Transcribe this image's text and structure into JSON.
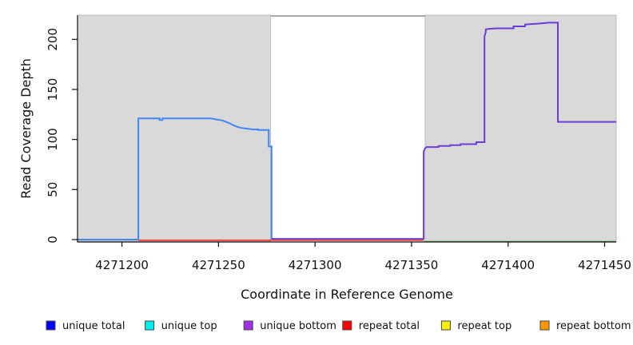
{
  "figure": {
    "background": "#ffffff",
    "panel_fill": "#d9d9d9",
    "panel_border": "#bdbdbd",
    "axis_color": "#111111"
  },
  "chart_data": {
    "type": "line",
    "title": "",
    "xlabel": "Coordinate in Reference Genome",
    "ylabel": "Read Coverage Depth",
    "xlim": [
      4271177,
      4271456
    ],
    "ylim": [
      0,
      224
    ],
    "x_ticks": [
      4271200,
      4271250,
      4271300,
      4271350,
      4271400,
      4271450
    ],
    "y_ticks": [
      0,
      50,
      100,
      150,
      200
    ],
    "grid": "off",
    "legend_position": "bottom",
    "shaded_regions": [
      {
        "x1": 4271177,
        "x2": 4271277,
        "fill": "#d9d9d9"
      },
      {
        "x1": 4271357,
        "x2": 4271456,
        "fill": "#d9d9d9"
      }
    ],
    "gap_top_border": {
      "x1": 4271277,
      "x2": 4271357,
      "color": "#8f8f8f"
    },
    "series": [
      {
        "name": "unique total",
        "color": "#4285f4",
        "width": 2,
        "points": [
          [
            4271177,
            0
          ],
          [
            4271208.5,
            0
          ],
          [
            4271208.5,
            121
          ],
          [
            4271219.5,
            121
          ],
          [
            4271219.5,
            119.5
          ],
          [
            4271221,
            119.5
          ],
          [
            4271221,
            121
          ],
          [
            4271246,
            121
          ],
          [
            4271249,
            120
          ],
          [
            4271252,
            119
          ],
          [
            4271254,
            117.5
          ],
          [
            4271256,
            116
          ],
          [
            4271258,
            114
          ],
          [
            4271260,
            112.5
          ],
          [
            4271262,
            111.5
          ],
          [
            4271264,
            111
          ],
          [
            4271266,
            110.5
          ],
          [
            4271268,
            110
          ],
          [
            4271270.6,
            110
          ],
          [
            4271270.6,
            109.5
          ],
          [
            4271276,
            109.5
          ],
          [
            4271276,
            93
          ],
          [
            4271277.5,
            93
          ],
          [
            4271277.5,
            0
          ],
          [
            4271278.5,
            0
          ]
        ]
      },
      {
        "name": "unique bottom",
        "color": "#6a3fd8",
        "width": 2,
        "points": [
          [
            4271277.5,
            0.7
          ],
          [
            4271356.3,
            0.7
          ],
          [
            4271356.3,
            88
          ],
          [
            4271357,
            91
          ],
          [
            4271357.8,
            92.5
          ],
          [
            4271364,
            92.5
          ],
          [
            4271364,
            93.5
          ],
          [
            4271370,
            93.5
          ],
          [
            4271370,
            94.3
          ],
          [
            4271375.4,
            94.3
          ],
          [
            4271375.4,
            95.3
          ],
          [
            4271383.5,
            95.3
          ],
          [
            4271383.5,
            97.3
          ],
          [
            4271387.8,
            97.3
          ],
          [
            4271387.8,
            203
          ],
          [
            4271388.4,
            207
          ],
          [
            4271388.4,
            210
          ],
          [
            4271390,
            210.5
          ],
          [
            4271394,
            211
          ],
          [
            4271402.8,
            211
          ],
          [
            4271402.8,
            213
          ],
          [
            4271408.8,
            213
          ],
          [
            4271408.8,
            214.8
          ],
          [
            4271412,
            215.3
          ],
          [
            4271416,
            215.8
          ],
          [
            4271419,
            216.3
          ],
          [
            4271421,
            216.7
          ],
          [
            4271425.8,
            216.7
          ],
          [
            4271425.8,
            117.6
          ],
          [
            4271456,
            117.6
          ]
        ]
      },
      {
        "name": "repeat total",
        "color": "#ee4444",
        "width": 1.8,
        "points": [
          [
            4271208.5,
            -0.6
          ],
          [
            4271356.3,
            -0.6
          ]
        ]
      },
      {
        "name": "baseline green",
        "color": "#55bb55",
        "width": 1.8,
        "points": [
          [
            4271356.3,
            -2
          ],
          [
            4271456,
            -2
          ]
        ]
      }
    ]
  },
  "legend": {
    "items": [
      {
        "label": "unique total",
        "color": "#0000ff"
      },
      {
        "label": "unique top",
        "color": "#00eeee"
      },
      {
        "label": "unique bottom",
        "color": "#9f30e8"
      },
      {
        "label": "repeat total",
        "color": "#ff0000"
      },
      {
        "label": "repeat top",
        "color": "#ffee00"
      },
      {
        "label": "repeat bottom",
        "color": "#ff9800"
      }
    ]
  }
}
